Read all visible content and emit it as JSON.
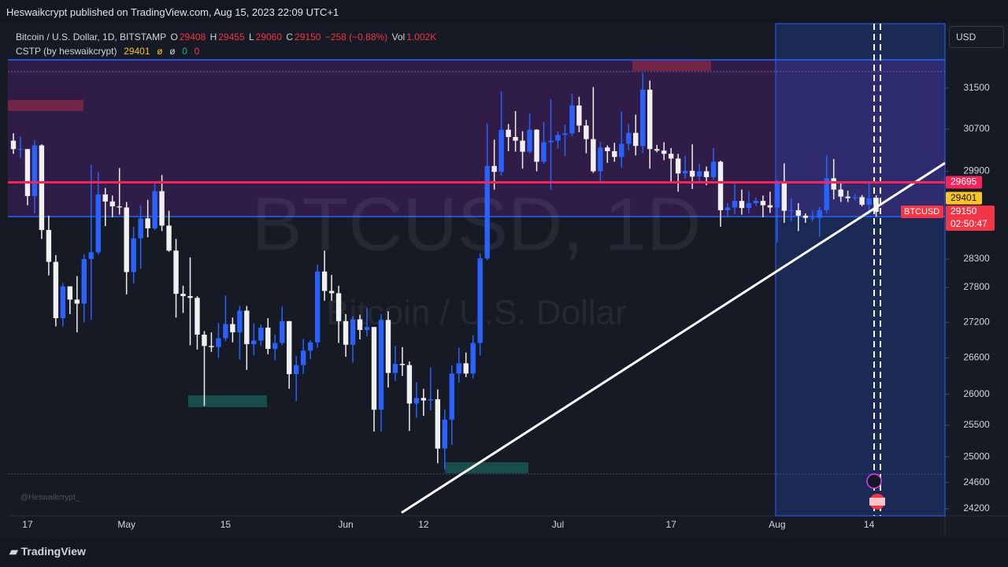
{
  "header": {
    "publisher": "Heswaikcrypt published on TradingView.com, Aug 15, 2023 22:09 UTC+1"
  },
  "chart_data": {
    "type": "candlestick",
    "symbol_title": "Bitcoin / U.S. Dollar, 1D, BITSTAMP",
    "ohlc_labels": [
      "O",
      "H",
      "L",
      "C"
    ],
    "change": "−258 (−0.88%)",
    "volume_label": "Vol",
    "volume": "1.002K",
    "indicator": {
      "name": "CSTP (by heswaikcrypt)",
      "value": 29401,
      "extras": [
        "ø",
        "ø",
        "0",
        "0"
      ],
      "color": "#f7c325"
    },
    "watermark": "BTCUSD, 1D",
    "watermark_sub": "Bitcoin / U.S. Dollar",
    "currency": "USD",
    "ticker": "BTCUSD",
    "countdown": "02:50:47",
    "level": 29695,
    "level_color": "#f7245a",
    "signature": "@Heswaikcrypt_",
    "up_color": "#2962ff",
    "down_color": "#f0f0f0",
    "log_scale": true,
    "ylim": [
      24093,
      32800
    ],
    "yticks": [
      24200,
      24600,
      25000,
      25500,
      26000,
      26600,
      27200,
      27800,
      28300,
      29900,
      30700,
      31500
    ],
    "categories": [
      null,
      null,
      "17",
      null,
      null,
      null,
      null,
      null,
      null,
      null,
      null,
      null,
      null,
      null,
      null,
      null,
      "May",
      null,
      null,
      null,
      null,
      null,
      null,
      null,
      null,
      null,
      null,
      null,
      null,
      null,
      "15",
      null,
      null,
      null,
      null,
      null,
      null,
      null,
      null,
      null,
      null,
      null,
      null,
      null,
      null,
      null,
      null,
      "Jun",
      null,
      null,
      null,
      null,
      null,
      null,
      null,
      null,
      null,
      null,
      "12",
      null,
      null,
      null,
      null,
      null,
      null,
      null,
      null,
      null,
      null,
      null,
      null,
      null,
      null,
      null,
      null,
      null,
      null,
      "Jul",
      null,
      null,
      null,
      null,
      null,
      null,
      null,
      null,
      null,
      null,
      null,
      null,
      null,
      null,
      null,
      "17",
      null,
      null,
      null,
      null,
      null,
      null,
      null,
      null,
      null,
      null,
      null,
      null,
      null,
      null,
      "Aug",
      null,
      null,
      null,
      null,
      null,
      null,
      null,
      null,
      null,
      null,
      null,
      null,
      "14",
      null
    ],
    "candles": [
      [
        30480,
        30620,
        30230,
        30320
      ],
      [
        30320,
        30560,
        30150,
        30320
      ],
      [
        30320,
        30320,
        29270,
        29440
      ],
      [
        29440,
        30490,
        29120,
        30390
      ],
      [
        30390,
        30410,
        28660,
        28820
      ],
      [
        28820,
        29080,
        28010,
        28250
      ],
      [
        28250,
        28370,
        27130,
        27270
      ],
      [
        27270,
        27880,
        27130,
        27820
      ],
      [
        27820,
        27820,
        27340,
        27590
      ],
      [
        27590,
        28000,
        27030,
        27520
      ],
      [
        27520,
        28380,
        27200,
        28300
      ],
      [
        28300,
        30020,
        27240,
        28420
      ],
      [
        28420,
        29880,
        28380,
        29470
      ],
      [
        29470,
        29590,
        28890,
        29340
      ],
      [
        29340,
        29450,
        29050,
        29250
      ],
      [
        29250,
        29960,
        29100,
        29230
      ],
      [
        29230,
        29330,
        27680,
        28070
      ],
      [
        28070,
        28880,
        27870,
        28670
      ],
      [
        28670,
        29270,
        28130,
        29030
      ],
      [
        29030,
        29370,
        28690,
        28850
      ],
      [
        28850,
        29690,
        28820,
        29530
      ],
      [
        29530,
        29830,
        28800,
        28900
      ],
      [
        28900,
        29170,
        28430,
        28450
      ],
      [
        28450,
        28660,
        27280,
        27690
      ],
      [
        27690,
        27830,
        27360,
        27650
      ],
      [
        27650,
        28330,
        26810,
        27620
      ],
      [
        27620,
        27650,
        26740,
        26990
      ],
      [
        26990,
        27050,
        25810,
        26800
      ],
      [
        26800,
        27030,
        26700,
        26780
      ],
      [
        26780,
        27190,
        26600,
        26930
      ],
      [
        26930,
        27660,
        26880,
        27170
      ],
      [
        27170,
        27280,
        26860,
        27030
      ],
      [
        27030,
        27480,
        26570,
        27400
      ],
      [
        27400,
        27480,
        26400,
        26830
      ],
      [
        26830,
        27180,
        26640,
        26890
      ],
      [
        26890,
        27160,
        26800,
        27110
      ],
      [
        27110,
        27270,
        26660,
        26750
      ],
      [
        26750,
        26990,
        26560,
        26850
      ],
      [
        26850,
        27470,
        26810,
        27220
      ],
      [
        27220,
        27220,
        26090,
        26330
      ],
      [
        26330,
        26630,
        25890,
        26480
      ],
      [
        26480,
        26920,
        26330,
        26720
      ],
      [
        26720,
        26900,
        26580,
        26860
      ],
      [
        26860,
        28200,
        26770,
        28080
      ],
      [
        28080,
        28450,
        27570,
        27740
      ],
      [
        27740,
        28020,
        27570,
        27700
      ],
      [
        27700,
        27830,
        26850,
        27220
      ],
      [
        27220,
        27340,
        26620,
        26820
      ],
      [
        26820,
        27300,
        26520,
        27250
      ],
      [
        27250,
        27330,
        26910,
        27070
      ],
      [
        27070,
        27450,
        26960,
        27120
      ],
      [
        27120,
        27120,
        25400,
        25750
      ],
      [
        25750,
        27340,
        25400,
        27240
      ],
      [
        27240,
        27390,
        26110,
        26350
      ],
      [
        26350,
        26800,
        26220,
        26500
      ],
      [
        26500,
        26780,
        26300,
        26480
      ],
      [
        26480,
        26540,
        25410,
        25850
      ],
      [
        25850,
        26200,
        25620,
        25940
      ],
      [
        25940,
        26090,
        25650,
        25900
      ],
      [
        25900,
        26440,
        25740,
        25920
      ],
      [
        25920,
        26080,
        24900,
        25130
      ],
      [
        25130,
        25750,
        24800,
        25590
      ],
      [
        25590,
        26480,
        25190,
        26340
      ],
      [
        26340,
        26770,
        26190,
        26510
      ],
      [
        26510,
        26690,
        26280,
        26340
      ],
      [
        26340,
        26980,
        26260,
        26850
      ],
      [
        26850,
        28400,
        26640,
        28310
      ],
      [
        28310,
        30810,
        28280,
        30000
      ],
      [
        30000,
        30500,
        29560,
        29890
      ],
      [
        29890,
        31430,
        29820,
        30690
      ],
      [
        30690,
        30800,
        30280,
        30550
      ],
      [
        30550,
        31050,
        30270,
        30480
      ],
      [
        30480,
        30660,
        29950,
        30270
      ],
      [
        30270,
        31000,
        30240,
        30690
      ],
      [
        30690,
        30700,
        29900,
        30080
      ],
      [
        30080,
        30840,
        30040,
        30450
      ],
      [
        30450,
        31280,
        29560,
        30480
      ],
      [
        30480,
        30660,
        30330,
        30590
      ],
      [
        30590,
        30790,
        30190,
        30620
      ],
      [
        30620,
        31390,
        30570,
        31160
      ],
      [
        31160,
        31330,
        30640,
        30770
      ],
      [
        30770,
        30880,
        30240,
        30510
      ],
      [
        30510,
        31520,
        29870,
        29900
      ],
      [
        29900,
        30450,
        29720,
        30350
      ],
      [
        30350,
        30390,
        30060,
        30280
      ],
      [
        30280,
        30440,
        30080,
        30170
      ],
      [
        30170,
        31040,
        29970,
        30420
      ],
      [
        30420,
        30800,
        30300,
        30630
      ],
      [
        30630,
        30980,
        30200,
        30380
      ],
      [
        30380,
        31800,
        30250,
        31470
      ],
      [
        31470,
        31650,
        29950,
        30320
      ],
      [
        30320,
        30400,
        30260,
        30290
      ],
      [
        30290,
        30450,
        30110,
        30230
      ],
      [
        30230,
        30340,
        29710,
        30140
      ],
      [
        30140,
        30230,
        29520,
        29860
      ],
      [
        29860,
        30190,
        29760,
        29910
      ],
      [
        29910,
        30410,
        29570,
        29800
      ],
      [
        29800,
        30050,
        29720,
        29900
      ],
      [
        29900,
        29990,
        29640,
        29790
      ],
      [
        29790,
        30340,
        29740,
        30080
      ],
      [
        30080,
        30100,
        28880,
        29180
      ],
      [
        29180,
        29310,
        29060,
        29230
      ],
      [
        29230,
        29690,
        29110,
        29350
      ],
      [
        29350,
        29560,
        29100,
        29220
      ],
      [
        29220,
        29530,
        29120,
        29310
      ],
      [
        29310,
        29410,
        29260,
        29350
      ],
      [
        29350,
        29450,
        29050,
        29270
      ],
      [
        29270,
        29520,
        29130,
        29230
      ],
      [
        29230,
        29740,
        28600,
        29700
      ],
      [
        29700,
        30050,
        28950,
        29170
      ],
      [
        29170,
        29400,
        28980,
        29180
      ],
      [
        29180,
        29310,
        28800,
        29080
      ],
      [
        29080,
        29120,
        28950,
        29040
      ],
      [
        29040,
        29170,
        28980,
        29040
      ],
      [
        29040,
        29240,
        28700,
        29180
      ],
      [
        29180,
        30200,
        29120,
        29770
      ],
      [
        29770,
        30130,
        29380,
        29560
      ],
      [
        29560,
        29710,
        29330,
        29430
      ],
      [
        29430,
        29540,
        29330,
        29400
      ],
      [
        29400,
        29480,
        29360,
        29420
      ],
      [
        29420,
        29460,
        29250,
        29280
      ],
      [
        29280,
        29680,
        29100,
        29400
      ],
      [
        29408,
        29455,
        29060,
        29150
      ]
    ]
  },
  "footer": {
    "brand": "TradingView"
  }
}
